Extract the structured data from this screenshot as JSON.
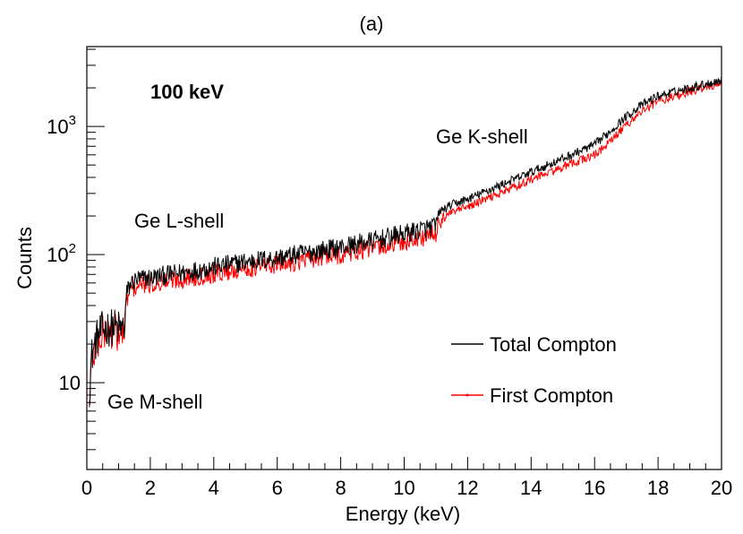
{
  "chart_data": {
    "type": "line",
    "title": "(a)",
    "xlabel": "Energy (keV)",
    "ylabel": "Counts",
    "xlim": [
      0,
      20
    ],
    "ylim_log": [
      2.1,
      4200
    ],
    "yscale": "log",
    "x_ticks": [
      "0",
      "2",
      "4",
      "6",
      "8",
      "10",
      "12",
      "14",
      "16",
      "18",
      "20"
    ],
    "y_ticks": [
      {
        "value": 10,
        "label": "10"
      },
      {
        "value": 100,
        "label": "10",
        "exp": "2"
      },
      {
        "value": 1000,
        "label": "10",
        "exp": "3"
      }
    ],
    "annotations": {
      "energy": "100 keV",
      "m_shell": "Ge M-shell",
      "l_shell": "Ge L-shell",
      "k_shell": "Ge K-shell"
    },
    "legend": {
      "placement": "bottom-right",
      "entries": [
        {
          "name": "Total Compton",
          "color": "#000000"
        },
        {
          "name": "First Compton",
          "color": "#ff0000"
        }
      ]
    },
    "series": [
      {
        "name": "Total Compton",
        "color": "#000000",
        "x": [
          0.08,
          0.15,
          0.3,
          0.5,
          0.7,
          0.9,
          1.1,
          1.2,
          1.25,
          1.4,
          1.6,
          2,
          3,
          4,
          5,
          6,
          7,
          8,
          9,
          10,
          11,
          11.1,
          11.5,
          12,
          13,
          14,
          15,
          16,
          16.5,
          17,
          17.5,
          18,
          19,
          20
        ],
        "y": [
          9,
          16,
          22,
          26,
          27,
          27,
          26,
          28,
          50,
          60,
          64,
          66,
          72,
          80,
          88,
          94,
          104,
          114,
          128,
          145,
          168,
          215,
          245,
          270,
          345,
          440,
          560,
          720,
          920,
          1200,
          1480,
          1730,
          2000,
          2300
        ]
      },
      {
        "name": "First Compton",
        "color": "#ff0000",
        "x": [
          0.08,
          0.15,
          0.3,
          0.5,
          0.7,
          0.9,
          1.1,
          1.2,
          1.25,
          1.4,
          1.6,
          2,
          3,
          4,
          5,
          6,
          7,
          8,
          9,
          10,
          11,
          11.1,
          11.5,
          12,
          13,
          14,
          15,
          16,
          16.5,
          17,
          17.5,
          18,
          19,
          20
        ],
        "y": [
          7,
          14,
          20,
          24,
          25,
          25,
          24,
          26,
          45,
          53,
          57,
          59,
          65,
          71,
          78,
          84,
          92,
          100,
          112,
          125,
          145,
          185,
          212,
          235,
          300,
          385,
          480,
          600,
          760,
          1030,
          1320,
          1580,
          1870,
          2180
        ]
      }
    ]
  }
}
